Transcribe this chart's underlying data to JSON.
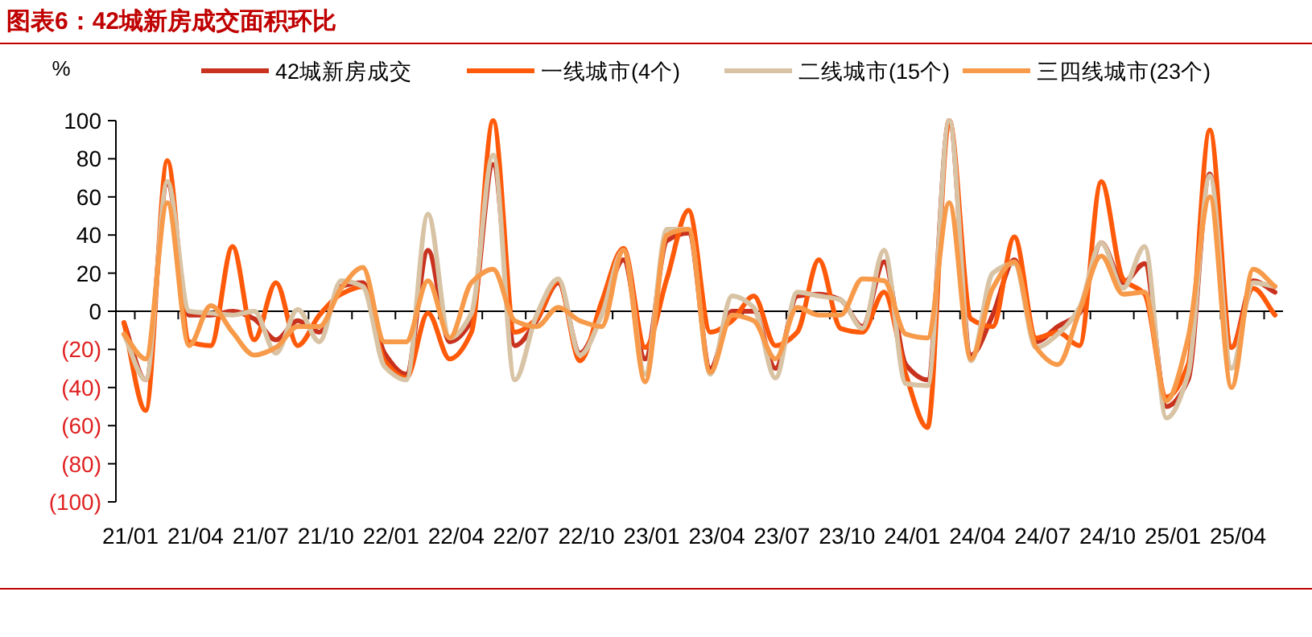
{
  "chart_data": {
    "type": "line",
    "title": "图表6：42城新房成交面积环比",
    "ylabel": "%",
    "legend": "top",
    "line_style": "solid",
    "categories": [
      "21/01",
      null,
      null,
      "21/04",
      null,
      null,
      "21/07",
      null,
      null,
      "21/10",
      null,
      null,
      "22/01",
      null,
      null,
      "22/04",
      null,
      null,
      "22/07",
      null,
      null,
      "22/10",
      null,
      null,
      "23/01",
      null,
      null,
      "23/04",
      null,
      null,
      "23/07",
      null,
      null,
      "23/10",
      null,
      null,
      "24/01",
      null,
      null,
      "24/04",
      null,
      null,
      "24/07",
      null,
      null,
      "24/10",
      null,
      null,
      "25/01",
      null,
      null,
      "25/04",
      null,
      null
    ],
    "ylim": [
      -100,
      100
    ],
    "yticks": [
      {
        "value": -100,
        "label": "(100)"
      },
      {
        "value": -80,
        "label": "(80)"
      },
      {
        "value": -60,
        "label": "(60)"
      },
      {
        "value": -40,
        "label": "(40)"
      },
      {
        "value": -20,
        "label": "(20)"
      },
      0,
      20,
      40,
      60,
      80,
      100
    ],
    "series": [
      {
        "name": "42城新房成交",
        "color": "#c8321e",
        "values": [
          -6,
          -36,
          67,
          -2,
          -2,
          0,
          -4,
          -15,
          -5,
          -11,
          13,
          15,
          -22,
          -33,
          32,
          -16,
          -5,
          77,
          -18,
          -5,
          15,
          -22,
          -1,
          27,
          -25,
          37,
          41,
          -30,
          0,
          0,
          -30,
          8,
          9,
          6,
          -8,
          26,
          -28,
          -36,
          100,
          -23,
          -2,
          27,
          -16,
          -8,
          -1,
          36,
          15,
          25,
          -50,
          -36,
          72,
          -19,
          16,
          10
        ]
      },
      {
        "name": "一线城市(4个)",
        "color": "#ff5a0a",
        "values": [
          -6,
          -52,
          79,
          -16,
          -18,
          34,
          -15,
          15,
          -18,
          -2,
          9,
          13,
          -26,
          -35,
          -1,
          -25,
          -11,
          100,
          -11,
          -4,
          16,
          -26,
          5,
          33,
          -19,
          17,
          53,
          -11,
          -5,
          8,
          -18,
          -11,
          27,
          -9,
          -11,
          10,
          -33,
          -61,
          100,
          -4,
          -8,
          39,
          -14,
          -11,
          -18,
          68,
          17,
          9,
          -45,
          -28,
          95,
          -19,
          12,
          -2
        ]
      },
      {
        "name": "二线城市(15个)",
        "color": "#d8c3a5",
        "values": [
          -12,
          -36,
          68,
          0,
          -1,
          -2,
          0,
          -22,
          1,
          -16,
          16,
          13,
          -29,
          -36,
          51,
          -14,
          -1,
          82,
          -36,
          -2,
          17,
          -23,
          -2,
          32,
          -33,
          43,
          43,
          -33,
          8,
          2,
          -35,
          10,
          8,
          6,
          -9,
          32,
          -38,
          -39,
          100,
          -26,
          20,
          25,
          -19,
          -12,
          2,
          36,
          12,
          34,
          -56,
          -33,
          71,
          -30,
          15,
          13
        ]
      },
      {
        "name": "三四线城市(23个)",
        "color": "#f79a4a",
        "values": [
          -12,
          -25,
          57,
          -18,
          3,
          -11,
          -23,
          -19,
          -8,
          -8,
          12,
          23,
          -16,
          -16,
          16,
          -14,
          15,
          22,
          -5,
          -8,
          2,
          -5,
          -8,
          32,
          -37,
          40,
          43,
          -32,
          -2,
          -5,
          -25,
          2,
          -2,
          -2,
          17,
          16,
          -12,
          -14,
          57,
          -25,
          12,
          26,
          -19,
          -28,
          0,
          29,
          9,
          10,
          -47,
          -14,
          60,
          -40,
          22,
          13
        ]
      }
    ]
  }
}
